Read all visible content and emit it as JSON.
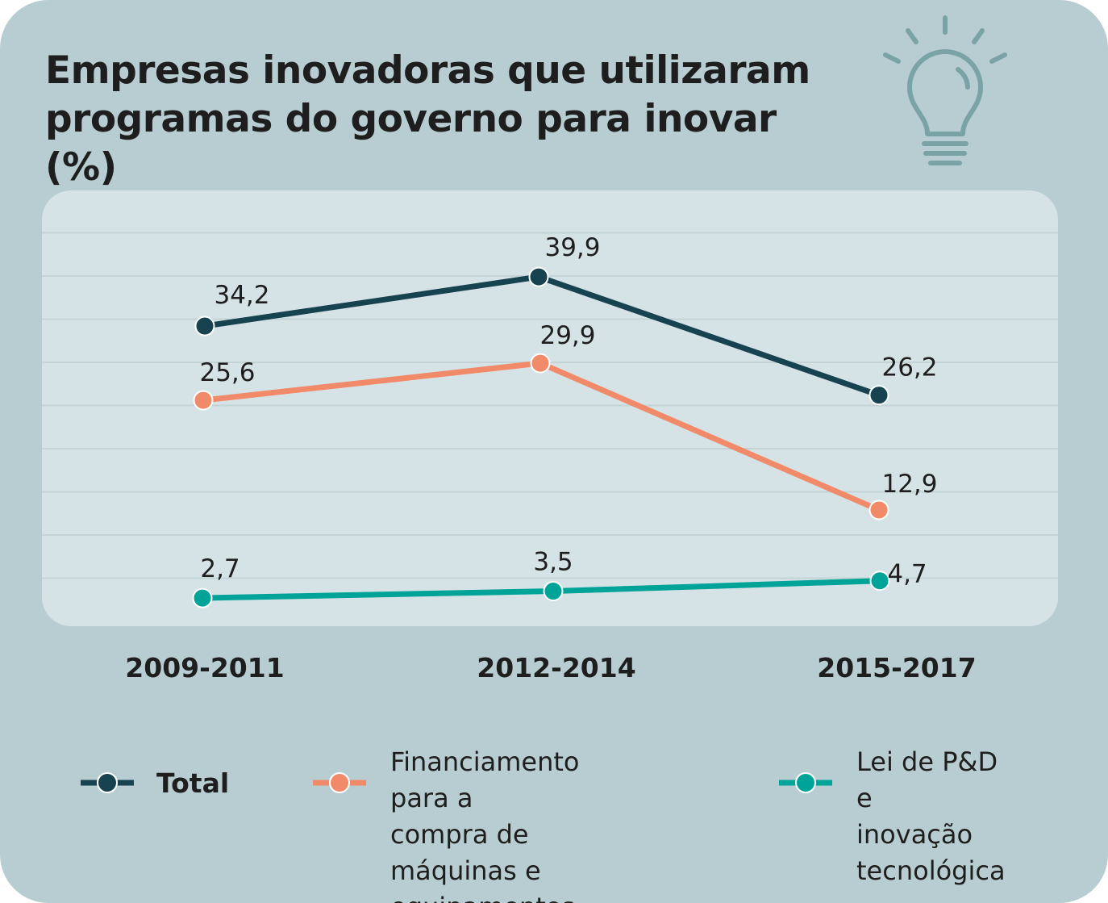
{
  "title": {
    "line1": "Empresas inovadoras que utilizaram",
    "line2": "programas do governo para inovar (%)"
  },
  "icon": "lightbulb-icon",
  "colors": {
    "background": "#b8cdd1",
    "plot_panel": "#d6e3e6",
    "total": "#17424f",
    "financiamento": "#f08a69",
    "lei": "#00a398",
    "icon": "#7aa3a6"
  },
  "chart_data": {
    "type": "line",
    "title": "Empresas inovadoras que utilizaram programas do governo para inovar (%)",
    "xlabel": "",
    "ylabel": "",
    "categories": [
      "2009-2011",
      "2012-2014",
      "2015-2017"
    ],
    "series": [
      {
        "name": "Total",
        "values": [
          34.2,
          39.9,
          26.2
        ],
        "labels": [
          "34,2",
          "39,9",
          "26,2"
        ]
      },
      {
        "name": "Financiamento para a compra de máquinas e equipamentos",
        "values": [
          25.6,
          29.9,
          12.9
        ],
        "labels": [
          "25,6",
          "29,9",
          "12,9"
        ]
      },
      {
        "name": "Lei de P&D e inovação tecnológica",
        "values": [
          2.7,
          3.5,
          4.7
        ],
        "labels": [
          "2,7",
          "3,5",
          "4,7"
        ]
      }
    ],
    "ylim": [
      0,
      45
    ],
    "grid": true,
    "legend": "bottom"
  },
  "legend": {
    "total": [
      "Total"
    ],
    "financiamento": [
      "Financiamento para a",
      "compra de máquinas e",
      "equipamentos"
    ],
    "lei": [
      "Lei de P&D e",
      "inovação",
      "tecnológica"
    ]
  }
}
